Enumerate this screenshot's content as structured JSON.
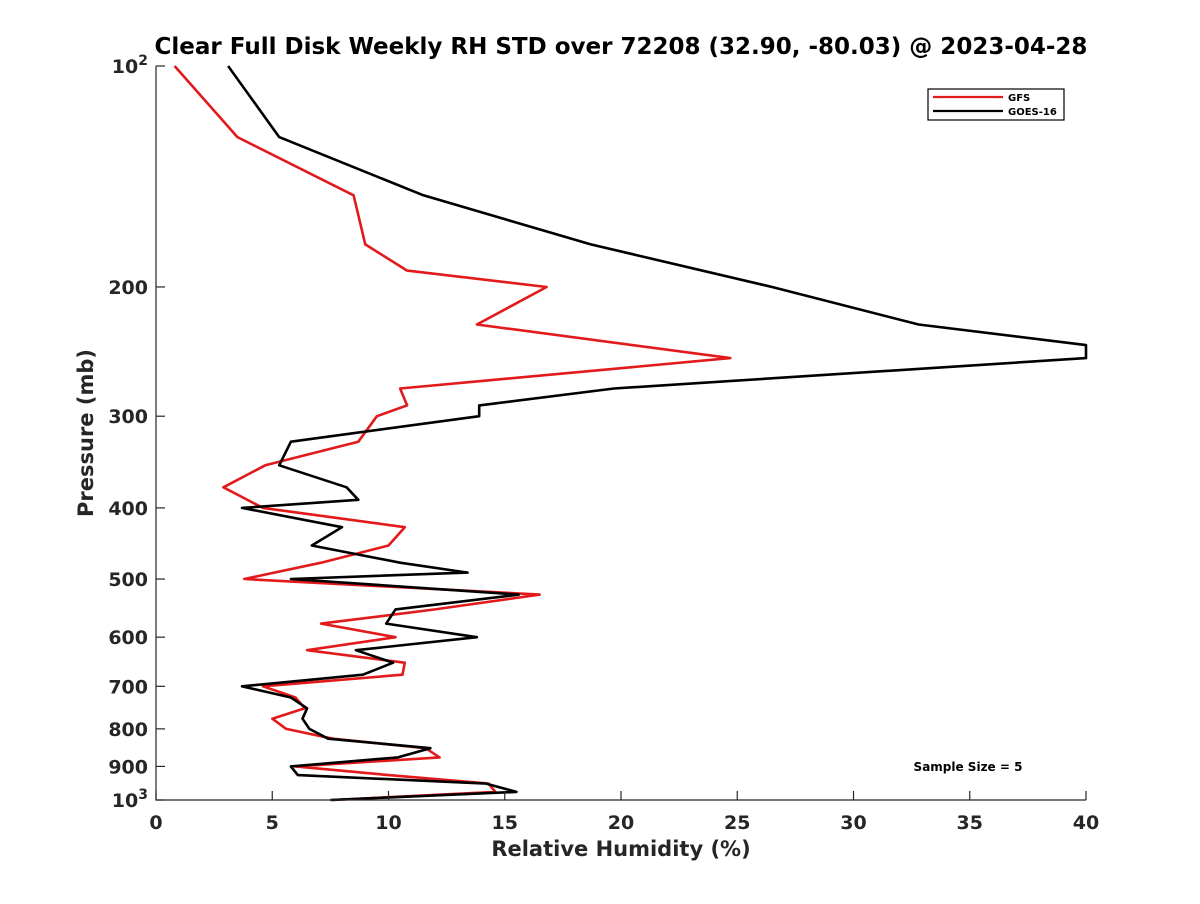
{
  "chart_data": {
    "type": "line",
    "title": "Clear Full Disk Weekly RH STD over 72208 (32.90, -80.03) @ 2023-04-28",
    "xlabel": "Relative Humidity (%)",
    "ylabel": "Pressure (mb)",
    "xlim": [
      0,
      40
    ],
    "ylim": [
      1000,
      100
    ],
    "y_scale": "log",
    "y_reversed": true,
    "grid": false,
    "legend_position": "top-right",
    "x_ticks": [
      "0",
      "5",
      "10",
      "15",
      "20",
      "25",
      "30",
      "35",
      "40"
    ],
    "x_tick_values": [
      0,
      5,
      10,
      15,
      20,
      25,
      30,
      35,
      40
    ],
    "y_ticks": [
      {
        "value": 100,
        "base": "10",
        "exp": "2",
        "label": ""
      },
      {
        "value": 200,
        "label": "200"
      },
      {
        "value": 300,
        "label": "300"
      },
      {
        "value": 400,
        "label": "400"
      },
      {
        "value": 500,
        "label": "500"
      },
      {
        "value": 600,
        "label": "600"
      },
      {
        "value": 700,
        "label": "700"
      },
      {
        "value": 800,
        "label": "800"
      },
      {
        "value": 900,
        "label": "900"
      },
      {
        "value": 1000,
        "base": "10",
        "exp": "3",
        "label": ""
      }
    ],
    "annotation": "Sample Size = 5",
    "series": [
      {
        "name": "GFS",
        "color": "#e31a1c",
        "points": [
          [
            0.8,
            100
          ],
          [
            3.5,
            125
          ],
          [
            8.5,
            150
          ],
          [
            9.0,
            175
          ],
          [
            10.8,
            190
          ],
          [
            16.8,
            200
          ],
          [
            13.8,
            225
          ],
          [
            24.7,
            250
          ],
          [
            10.5,
            275
          ],
          [
            10.8,
            290
          ],
          [
            9.5,
            300
          ],
          [
            8.7,
            325
          ],
          [
            4.7,
            350
          ],
          [
            2.9,
            375
          ],
          [
            4.6,
            400
          ],
          [
            10.7,
            425
          ],
          [
            10.0,
            450
          ],
          [
            7.1,
            475
          ],
          [
            3.8,
            500
          ],
          [
            16.5,
            525
          ],
          [
            12.0,
            550
          ],
          [
            7.1,
            575
          ],
          [
            10.3,
            600
          ],
          [
            6.5,
            625
          ],
          [
            10.7,
            650
          ],
          [
            10.6,
            675
          ],
          [
            4.6,
            700
          ],
          [
            6.0,
            725
          ],
          [
            6.4,
            750
          ],
          [
            5.0,
            775
          ],
          [
            5.6,
            800
          ],
          [
            7.6,
            825
          ],
          [
            11.6,
            850
          ],
          [
            12.2,
            875
          ],
          [
            6.0,
            900
          ],
          [
            10.0,
            925
          ],
          [
            14.3,
            950
          ],
          [
            14.6,
            975
          ],
          [
            7.6,
            1000
          ]
        ]
      },
      {
        "name": "GOES-16",
        "color": "#000000",
        "points": [
          [
            3.1,
            100
          ],
          [
            5.3,
            125
          ],
          [
            11.5,
            150
          ],
          [
            18.7,
            175
          ],
          [
            26.5,
            200
          ],
          [
            32.8,
            225
          ],
          [
            40.0,
            240
          ],
          [
            40.0,
            250
          ],
          [
            19.7,
            275
          ],
          [
            13.9,
            290
          ],
          [
            13.9,
            300
          ],
          [
            5.8,
            325
          ],
          [
            5.3,
            350
          ],
          [
            8.2,
            375
          ],
          [
            8.7,
            390
          ],
          [
            3.7,
            400
          ],
          [
            8.0,
            425
          ],
          [
            6.7,
            450
          ],
          [
            10.5,
            475
          ],
          [
            13.4,
            490
          ],
          [
            5.8,
            500
          ],
          [
            15.6,
            525
          ],
          [
            10.3,
            550
          ],
          [
            9.9,
            575
          ],
          [
            13.8,
            600
          ],
          [
            8.6,
            625
          ],
          [
            10.2,
            650
          ],
          [
            8.9,
            675
          ],
          [
            3.7,
            700
          ],
          [
            5.8,
            725
          ],
          [
            6.5,
            750
          ],
          [
            6.3,
            775
          ],
          [
            6.6,
            800
          ],
          [
            7.4,
            825
          ],
          [
            11.8,
            850
          ],
          [
            10.4,
            875
          ],
          [
            5.8,
            900
          ],
          [
            6.1,
            925
          ],
          [
            14.2,
            950
          ],
          [
            15.5,
            975
          ],
          [
            7.5,
            1000
          ]
        ]
      }
    ]
  }
}
